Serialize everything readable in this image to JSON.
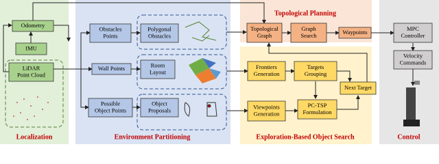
{
  "panels": [
    {
      "title": "Localization",
      "boxes": [
        {
          "lines": [
            "Odometry"
          ]
        },
        {
          "lines": [
            "IMU"
          ]
        },
        {
          "lines": [
            "LiDAR",
            "Point Cloud"
          ]
        }
      ]
    },
    {
      "title": "Environment Partitioning",
      "boxes": [
        {
          "lines": [
            "Obstacles",
            "Points"
          ]
        },
        {
          "lines": [
            "Wall Points"
          ]
        },
        {
          "lines": [
            "Possible",
            "Object Points"
          ]
        },
        {
          "lines": [
            "Polygonal",
            "Obstacles"
          ]
        },
        {
          "lines": [
            "Room",
            "Layout"
          ]
        },
        {
          "lines": [
            "Object",
            "Proposals"
          ]
        }
      ]
    },
    {
      "title": "Topological Planning",
      "boxes": [
        {
          "lines": [
            "Topological",
            "Graph"
          ]
        },
        {
          "lines": [
            "Graph",
            "Search"
          ]
        },
        {
          "lines": [
            "Waypoints"
          ]
        }
      ]
    },
    {
      "title": "Exploration-Based Object Search",
      "boxes": [
        {
          "lines": [
            "Frontiers",
            "Generation"
          ]
        },
        {
          "lines": [
            "Targets",
            "Grouping"
          ]
        },
        {
          "lines": [
            "Next Target"
          ]
        },
        {
          "lines": [
            "Viewpoints",
            "Generation"
          ]
        },
        {
          "lines": [
            "PC-TSP",
            "Formulation"
          ]
        }
      ]
    },
    {
      "title": "Control",
      "boxes": [
        {
          "lines": [
            "MPC",
            "Controller"
          ]
        },
        {
          "lines": [
            "Velocity",
            "Commands"
          ]
        }
      ]
    }
  ]
}
